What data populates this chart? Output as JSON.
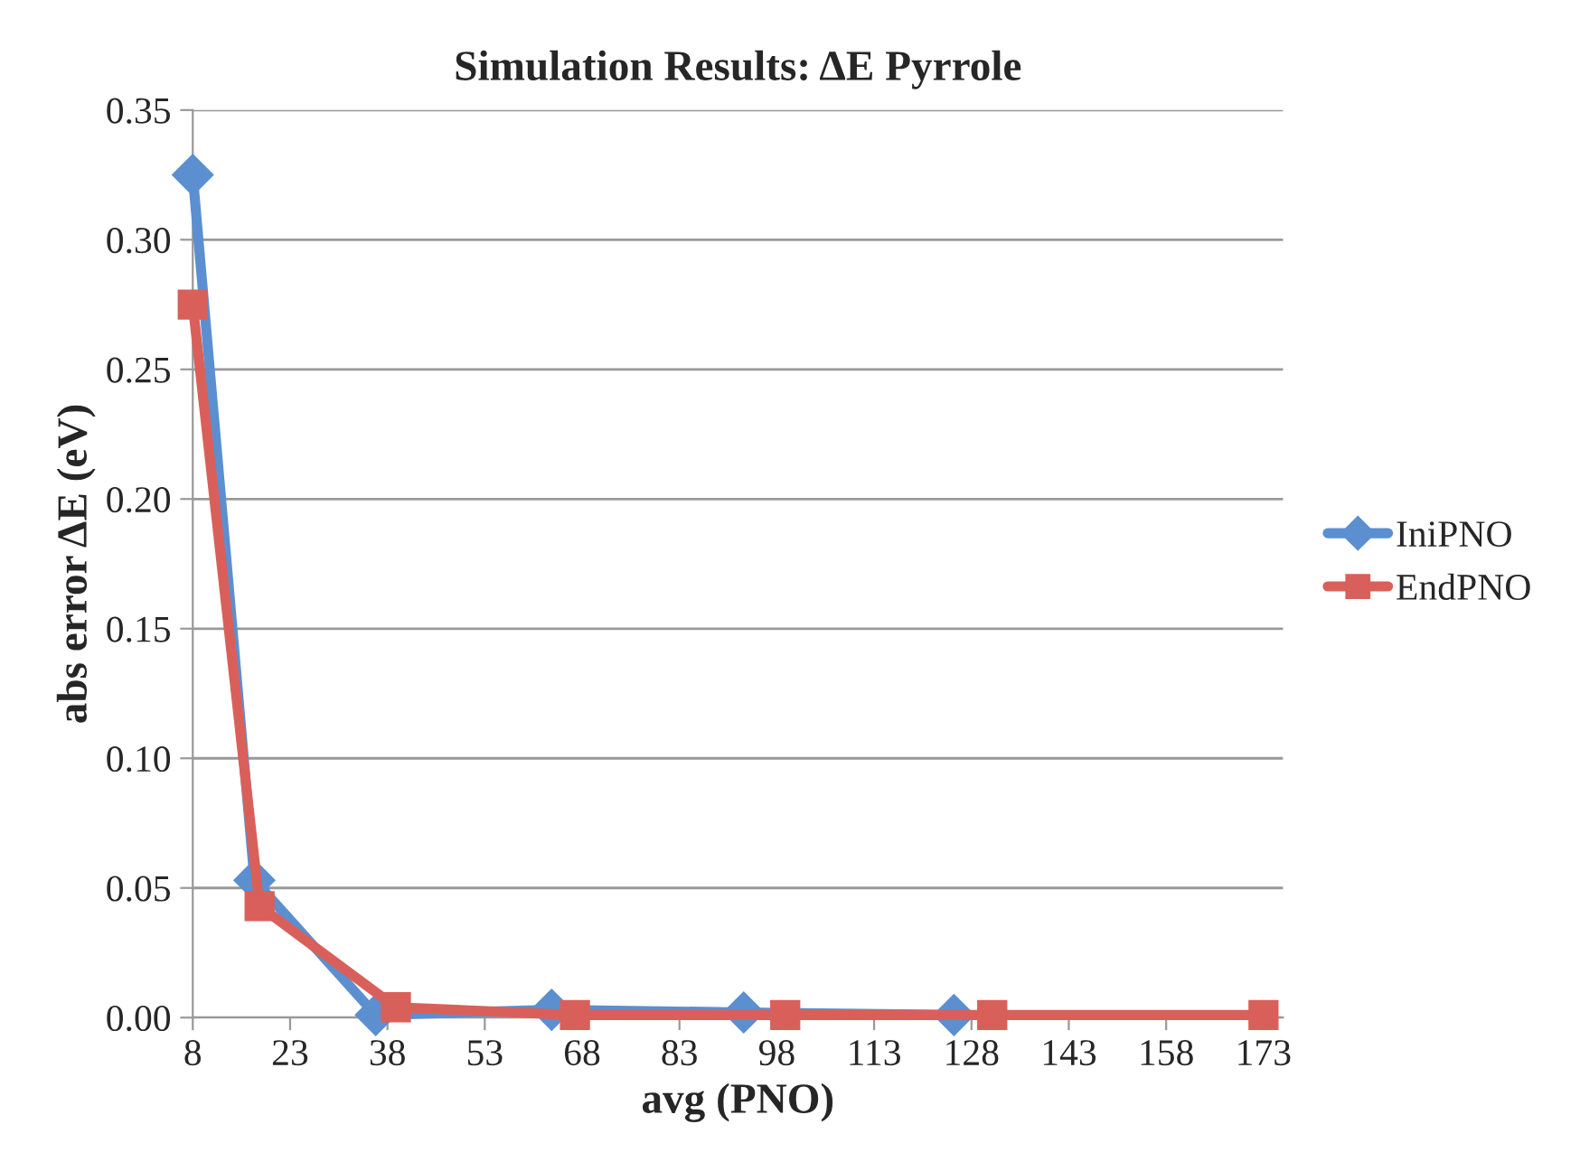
{
  "chart_data": {
    "type": "line",
    "title": "Simulation Results: ΔE Pyrrole",
    "xlabel": "avg (PNO)",
    "ylabel": "abs error ΔE (eV)",
    "xlim": [
      8,
      176
    ],
    "xticks": [
      8,
      23,
      38,
      53,
      68,
      83,
      98,
      113,
      128,
      143,
      158,
      173
    ],
    "ylim": [
      0,
      0.35
    ],
    "yticks": [
      {
        "value": 0,
        "label": "0.00"
      },
      {
        "value": 0.05,
        "label": "0.05"
      },
      {
        "value": 0.1,
        "label": "0.10"
      },
      {
        "value": 0.15,
        "label": "0.15"
      },
      {
        "value": 0.2,
        "label": "0.20"
      },
      {
        "value": 0.25,
        "label": "0.25"
      },
      {
        "value": 0.3,
        "label": "0.30"
      },
      {
        "value": 0.35,
        "label": "0.35"
      }
    ],
    "grid": "y",
    "legend": "right",
    "series": [
      {
        "name": "IniPNO",
        "color": "#5b8fd0",
        "marker": "diamond",
        "x": [
          8,
          17.5,
          36.2,
          63.3,
          92.9,
          125.3
        ],
        "values": [
          0.325,
          0.053,
          0.001,
          0.003,
          0.002,
          0.001
        ]
      },
      {
        "name": "EndPNO",
        "color": "#d9605a",
        "marker": "square",
        "x": [
          8,
          18.3,
          39.3,
          66.9,
          99.3,
          131.2,
          173
        ],
        "values": [
          0.275,
          0.043,
          0.004,
          0.001,
          0.001,
          0.001,
          0.001
        ]
      }
    ]
  }
}
